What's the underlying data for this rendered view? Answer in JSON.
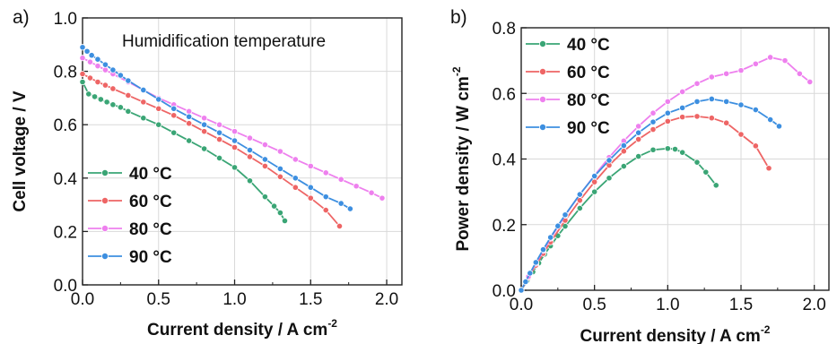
{
  "chart_data": [
    {
      "type": "line",
      "panel_label": "a)",
      "annotation": "Humidification temperature",
      "xlabel": "Current density / A cm",
      "xlabel_sup": "-2",
      "ylabel": "Cell voltage / V",
      "xlim": [
        0,
        2.1
      ],
      "ylim": [
        0,
        1.0
      ],
      "xticks": [
        "0.0",
        "0.5",
        "1.0",
        "1.5",
        "2.0"
      ],
      "yticks": [
        "0.0",
        "0.2",
        "0.4",
        "0.6",
        "0.8",
        "1.0"
      ],
      "grid": true,
      "legend_position": "lower-left",
      "series": [
        {
          "name": "40 °C",
          "color": "#3aa575",
          "x": [
            0.0,
            0.04,
            0.08,
            0.12,
            0.16,
            0.2,
            0.25,
            0.3,
            0.4,
            0.5,
            0.6,
            0.7,
            0.8,
            0.9,
            1.0,
            1.1,
            1.2,
            1.26,
            1.3,
            1.33
          ],
          "y": [
            0.76,
            0.715,
            0.705,
            0.695,
            0.685,
            0.675,
            0.665,
            0.65,
            0.625,
            0.6,
            0.57,
            0.54,
            0.51,
            0.475,
            0.44,
            0.39,
            0.33,
            0.295,
            0.27,
            0.24
          ]
        },
        {
          "name": "60 °C",
          "color": "#ee6565",
          "x": [
            0.0,
            0.05,
            0.1,
            0.15,
            0.2,
            0.3,
            0.4,
            0.5,
            0.6,
            0.7,
            0.8,
            0.9,
            1.0,
            1.1,
            1.2,
            1.3,
            1.4,
            1.5,
            1.6,
            1.69
          ],
          "y": [
            0.79,
            0.775,
            0.76,
            0.748,
            0.735,
            0.71,
            0.685,
            0.66,
            0.635,
            0.605,
            0.575,
            0.545,
            0.515,
            0.48,
            0.445,
            0.405,
            0.365,
            0.325,
            0.28,
            0.22
          ]
        },
        {
          "name": "80 °C",
          "color": "#ee80ee",
          "x": [
            0.0,
            0.05,
            0.1,
            0.15,
            0.2,
            0.3,
            0.4,
            0.5,
            0.6,
            0.7,
            0.8,
            0.9,
            1.0,
            1.1,
            1.2,
            1.3,
            1.4,
            1.5,
            1.6,
            1.7,
            1.8,
            1.9,
            1.97
          ],
          "y": [
            0.85,
            0.835,
            0.82,
            0.805,
            0.79,
            0.76,
            0.73,
            0.7,
            0.675,
            0.65,
            0.625,
            0.6,
            0.575,
            0.55,
            0.525,
            0.5,
            0.47,
            0.445,
            0.42,
            0.395,
            0.37,
            0.345,
            0.325
          ]
        },
        {
          "name": "90 °C",
          "color": "#3d8fe0",
          "x": [
            0.0,
            0.03,
            0.06,
            0.1,
            0.15,
            0.2,
            0.25,
            0.3,
            0.4,
            0.5,
            0.6,
            0.7,
            0.8,
            0.9,
            1.0,
            1.1,
            1.2,
            1.3,
            1.4,
            1.5,
            1.6,
            1.7,
            1.76
          ],
          "y": [
            0.89,
            0.875,
            0.86,
            0.845,
            0.825,
            0.805,
            0.785,
            0.765,
            0.73,
            0.695,
            0.66,
            0.63,
            0.6,
            0.57,
            0.54,
            0.505,
            0.47,
            0.435,
            0.4,
            0.365,
            0.33,
            0.305,
            0.285
          ]
        }
      ]
    },
    {
      "type": "line",
      "panel_label": "b)",
      "xlabel": "Current density / A cm",
      "xlabel_sup": "-2",
      "ylabel": "Power density / W cm",
      "ylabel_sup": "-2",
      "xlim": [
        0,
        2.1
      ],
      "ylim": [
        0,
        0.8
      ],
      "xticks": [
        "0.0",
        "0.5",
        "1.0",
        "1.5",
        "2.0"
      ],
      "yticks": [
        "0.0",
        "0.2",
        "0.4",
        "0.6",
        "0.8"
      ],
      "grid": true,
      "legend_position": "top-left",
      "series": [
        {
          "name": "40 °C",
          "color": "#3aa575",
          "x": [
            0.0,
            0.04,
            0.08,
            0.12,
            0.16,
            0.2,
            0.25,
            0.3,
            0.4,
            0.5,
            0.6,
            0.7,
            0.8,
            0.9,
            1.0,
            1.05,
            1.1,
            1.2,
            1.26,
            1.33
          ],
          "y": [
            0.0,
            0.029,
            0.056,
            0.083,
            0.11,
            0.135,
            0.166,
            0.195,
            0.25,
            0.3,
            0.342,
            0.378,
            0.408,
            0.428,
            0.432,
            0.43,
            0.42,
            0.39,
            0.36,
            0.32
          ]
        },
        {
          "name": "60 °C",
          "color": "#ee6565",
          "x": [
            0.0,
            0.05,
            0.1,
            0.15,
            0.2,
            0.3,
            0.4,
            0.5,
            0.6,
            0.7,
            0.8,
            0.9,
            1.0,
            1.1,
            1.2,
            1.3,
            1.4,
            1.5,
            1.6,
            1.69
          ],
          "y": [
            0.0,
            0.039,
            0.076,
            0.112,
            0.147,
            0.213,
            0.274,
            0.33,
            0.381,
            0.424,
            0.46,
            0.49,
            0.515,
            0.528,
            0.53,
            0.525,
            0.51,
            0.475,
            0.44,
            0.372
          ]
        },
        {
          "name": "80 °C",
          "color": "#ee80ee",
          "x": [
            0.0,
            0.05,
            0.1,
            0.15,
            0.2,
            0.3,
            0.4,
            0.5,
            0.6,
            0.7,
            0.8,
            0.9,
            1.0,
            1.1,
            1.2,
            1.3,
            1.4,
            1.5,
            1.6,
            1.7,
            1.8,
            1.9,
            1.97
          ],
          "y": [
            0.0,
            0.042,
            0.082,
            0.121,
            0.158,
            0.228,
            0.292,
            0.35,
            0.405,
            0.455,
            0.5,
            0.54,
            0.575,
            0.605,
            0.63,
            0.65,
            0.66,
            0.67,
            0.69,
            0.71,
            0.7,
            0.66,
            0.635
          ]
        },
        {
          "name": "90 °C",
          "color": "#3d8fe0",
          "x": [
            0.0,
            0.03,
            0.06,
            0.1,
            0.15,
            0.2,
            0.25,
            0.3,
            0.4,
            0.5,
            0.6,
            0.7,
            0.8,
            0.9,
            1.0,
            1.1,
            1.2,
            1.3,
            1.4,
            1.5,
            1.6,
            1.7,
            1.76
          ],
          "y": [
            0.0,
            0.026,
            0.052,
            0.085,
            0.124,
            0.161,
            0.196,
            0.23,
            0.292,
            0.348,
            0.396,
            0.441,
            0.48,
            0.513,
            0.54,
            0.556,
            0.575,
            0.583,
            0.575,
            0.565,
            0.55,
            0.52,
            0.5
          ]
        }
      ]
    }
  ]
}
